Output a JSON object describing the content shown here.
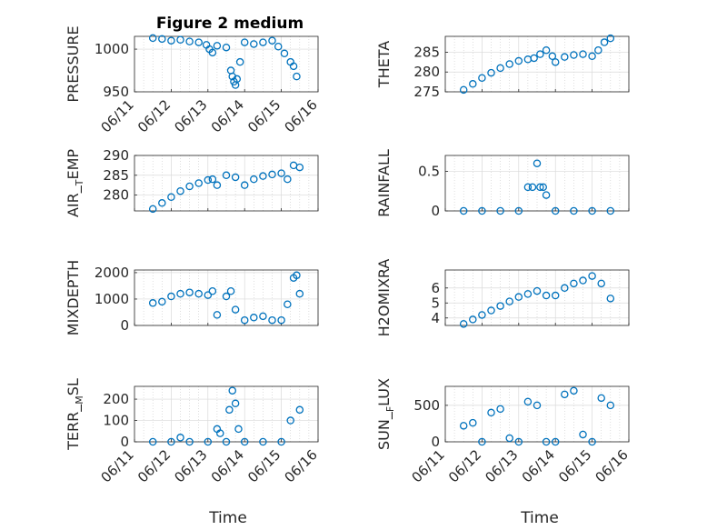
{
  "figure": {
    "title": "Figure 2 medium",
    "xlabel": "Time",
    "marker_color": "#0072BD"
  },
  "chart_data": [
    {
      "type": "scatter",
      "title": "Figure 2 medium",
      "ylabel": "PRESSURE",
      "ylim": [
        950,
        1015
      ],
      "yticks": [
        950,
        1000
      ],
      "xlim": [
        "06/11",
        "06/16"
      ],
      "xticks": [
        "06/11",
        "06/12",
        "06/13",
        "06/14",
        "06/15",
        "06/16"
      ],
      "x": [
        "06/11 12:00",
        "06/11 18:00",
        "06/12 00:00",
        "06/12 06:00",
        "06/12 12:00",
        "06/12 18:00",
        "06/12 23:00",
        "06/13 01:00",
        "06/13 03:00",
        "06/13 06:00",
        "06/13 12:00",
        "06/13 15:00",
        "06/13 16:00",
        "06/13 17:00",
        "06/13 18:00",
        "06/13 19:00",
        "06/13 21:00",
        "06/14 00:00",
        "06/14 06:00",
        "06/14 12:00",
        "06/14 18:00",
        "06/14 22:00",
        "06/15 02:00",
        "06/15 06:00",
        "06/15 08:00",
        "06/15 10:00"
      ],
      "y": [
        1013,
        1012,
        1010,
        1011,
        1009,
        1008,
        1005,
        1000,
        996,
        1004,
        1002,
        975,
        968,
        962,
        958,
        965,
        985,
        1008,
        1006,
        1008,
        1010,
        1003,
        995,
        985,
        980,
        968
      ]
    },
    {
      "type": "scatter",
      "ylabel": "THETA",
      "ylim": [
        275,
        289
      ],
      "yticks": [
        275,
        280,
        285
      ],
      "xlim": [
        "06/11",
        "06/16"
      ],
      "x": [
        "06/11 12:00",
        "06/11 18:00",
        "06/12 00:00",
        "06/12 06:00",
        "06/12 12:00",
        "06/12 18:00",
        "06/13 00:00",
        "06/13 06:00",
        "06/13 10:00",
        "06/13 14:00",
        "06/13 18:00",
        "06/13 22:00",
        "06/14 00:00",
        "06/14 06:00",
        "06/14 12:00",
        "06/14 18:00",
        "06/15 00:00",
        "06/15 04:00",
        "06/15 08:00",
        "06/15 12:00"
      ],
      "y": [
        275.5,
        277,
        278.5,
        279.8,
        281,
        282,
        282.8,
        283.2,
        283.5,
        284.5,
        285.5,
        284,
        282.5,
        283.8,
        284.3,
        284.5,
        284,
        285.5,
        287.5,
        288.5
      ]
    },
    {
      "type": "scatter",
      "ylabel": "AIR_TEMP",
      "ylim": [
        276,
        290
      ],
      "yticks": [
        280,
        285,
        290
      ],
      "xlim": [
        "06/11",
        "06/16"
      ],
      "x": [
        "06/11 12:00",
        "06/11 18:00",
        "06/12 00:00",
        "06/12 06:00",
        "06/12 12:00",
        "06/12 18:00",
        "06/13 00:00",
        "06/13 03:00",
        "06/13 06:00",
        "06/13 12:00",
        "06/13 18:00",
        "06/14 00:00",
        "06/14 06:00",
        "06/14 12:00",
        "06/14 18:00",
        "06/15 00:00",
        "06/15 04:00",
        "06/15 08:00",
        "06/15 12:00"
      ],
      "y": [
        276.5,
        278,
        279.5,
        281,
        282.2,
        283,
        283.8,
        284,
        282.5,
        285,
        284.5,
        282.5,
        284,
        284.8,
        285.2,
        285.5,
        284,
        287.5,
        287
      ]
    },
    {
      "type": "scatter",
      "ylabel": "RAINFALL",
      "ylim": [
        0,
        0.7
      ],
      "yticks": [
        0,
        0.5
      ],
      "xlim": [
        "06/11",
        "06/16"
      ],
      "x": [
        "06/11 12:00",
        "06/12 00:00",
        "06/12 12:00",
        "06/13 00:00",
        "06/13 06:00",
        "06/13 09:00",
        "06/13 12:00",
        "06/13 14:00",
        "06/13 16:00",
        "06/13 18:00",
        "06/14 00:00",
        "06/14 12:00",
        "06/15 00:00",
        "06/15 12:00"
      ],
      "y": [
        0,
        0,
        0,
        0,
        0.3,
        0.3,
        0.6,
        0.3,
        0.3,
        0.2,
        0,
        0,
        0,
        0
      ]
    },
    {
      "type": "scatter",
      "ylabel": "MIXDEPTH",
      "ylim": [
        0,
        2100
      ],
      "yticks": [
        0,
        1000,
        2000
      ],
      "xlim": [
        "06/11",
        "06/16"
      ],
      "x": [
        "06/11 12:00",
        "06/11 18:00",
        "06/12 00:00",
        "06/12 06:00",
        "06/12 12:00",
        "06/12 18:00",
        "06/13 00:00",
        "06/13 03:00",
        "06/13 06:00",
        "06/13 12:00",
        "06/13 15:00",
        "06/13 18:00",
        "06/14 00:00",
        "06/14 06:00",
        "06/14 12:00",
        "06/14 18:00",
        "06/15 00:00",
        "06/15 04:00",
        "06/15 08:00",
        "06/15 10:00",
        "06/15 12:00"
      ],
      "y": [
        850,
        900,
        1100,
        1200,
        1250,
        1200,
        1150,
        1300,
        400,
        1100,
        1300,
        600,
        200,
        300,
        350,
        200,
        200,
        800,
        1800,
        1900,
        1200
      ]
    },
    {
      "type": "scatter",
      "ylabel": "H2OMIXRA",
      "ylim": [
        3.5,
        7.2
      ],
      "yticks": [
        4,
        5,
        6
      ],
      "xlim": [
        "06/11",
        "06/16"
      ],
      "x": [
        "06/11 12:00",
        "06/11 18:00",
        "06/12 00:00",
        "06/12 06:00",
        "06/12 12:00",
        "06/12 18:00",
        "06/13 00:00",
        "06/13 06:00",
        "06/13 12:00",
        "06/13 18:00",
        "06/14 00:00",
        "06/14 06:00",
        "06/14 12:00",
        "06/14 18:00",
        "06/15 00:00",
        "06/15 06:00",
        "06/15 12:00"
      ],
      "y": [
        3.6,
        3.9,
        4.2,
        4.5,
        4.8,
        5.1,
        5.4,
        5.6,
        5.8,
        5.5,
        5.5,
        6.0,
        6.3,
        6.5,
        6.8,
        6.3,
        5.3
      ]
    },
    {
      "type": "scatter",
      "ylabel": "TERR_MSL",
      "ylim": [
        0,
        260
      ],
      "yticks": [
        0,
        100,
        200
      ],
      "xlim": [
        "06/11",
        "06/16"
      ],
      "xticks": [
        "06/11",
        "06/12",
        "06/13",
        "06/14",
        "06/15",
        "06/16"
      ],
      "x": [
        "06/11 12:00",
        "06/12 00:00",
        "06/12 06:00",
        "06/12 12:00",
        "06/13 00:00",
        "06/13 06:00",
        "06/13 08:00",
        "06/13 12:00",
        "06/13 14:00",
        "06/13 16:00",
        "06/13 18:00",
        "06/13 20:00",
        "06/14 00:00",
        "06/14 12:00",
        "06/15 00:00",
        "06/15 06:00",
        "06/15 12:00"
      ],
      "y": [
        0,
        0,
        20,
        0,
        0,
        60,
        40,
        0,
        150,
        240,
        180,
        60,
        0,
        0,
        0,
        100,
        150
      ]
    },
    {
      "type": "scatter",
      "ylabel": "SUN_FLUX",
      "ylim": [
        0,
        760
      ],
      "yticks": [
        0,
        500
      ],
      "xlim": [
        "06/11",
        "06/16"
      ],
      "xticks": [
        "06/11",
        "06/12",
        "06/13",
        "06/14",
        "06/15",
        "06/16"
      ],
      "x": [
        "06/11 12:00",
        "06/11 18:00",
        "06/12 00:00",
        "06/12 06:00",
        "06/12 12:00",
        "06/12 18:00",
        "06/13 00:00",
        "06/13 06:00",
        "06/13 12:00",
        "06/13 18:00",
        "06/14 00:00",
        "06/14 06:00",
        "06/14 12:00",
        "06/14 18:00",
        "06/15 00:00",
        "06/15 06:00",
        "06/15 12:00"
      ],
      "y": [
        220,
        260,
        0,
        400,
        450,
        50,
        0,
        550,
        500,
        0,
        0,
        650,
        700,
        100,
        0,
        600,
        500
      ]
    }
  ]
}
